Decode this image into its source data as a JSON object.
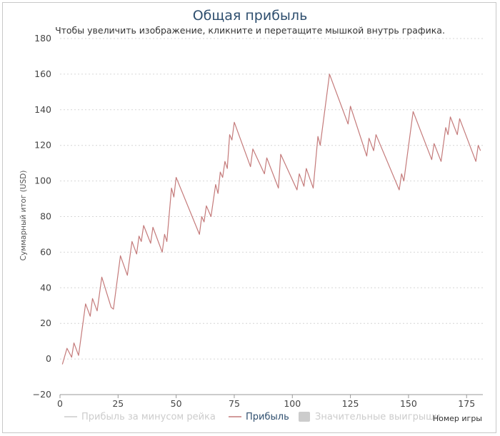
{
  "chart_data": {
    "type": "line",
    "title": "Общая прибыль",
    "subtitle": "Чтобы увеличить изображение, кликните и перетащите мышкой внутрь графика.",
    "xlabel": "Номер игры",
    "ylabel": "Суммарный итог (USD)",
    "xlim": [
      0,
      182
    ],
    "ylim": [
      -20,
      180
    ],
    "x_ticks": [
      "0",
      "25",
      "50",
      "75",
      "100",
      "125",
      "150",
      "175"
    ],
    "x_tick_values": [
      0,
      25,
      50,
      75,
      100,
      125,
      150,
      175
    ],
    "y_ticks": [
      "180",
      "160",
      "140",
      "120",
      "100",
      "80",
      "60",
      "40",
      "20",
      "0",
      "−20"
    ],
    "y_tick_values": [
      180,
      160,
      140,
      120,
      100,
      80,
      60,
      40,
      20,
      0,
      -20
    ],
    "grid": true,
    "legend_position": "bottom",
    "legend": [
      {
        "name": "Прибыль за минусом рейка",
        "symbol": "line",
        "color": "#cccccc",
        "text_color": "#cccccc"
      },
      {
        "name": "Прибыль",
        "symbol": "line",
        "color": "#c47a7a",
        "text_color": "#2f4f6f"
      },
      {
        "name": "Значительные выигрыши",
        "symbol": "box",
        "color": "#cccccc",
        "text_color": "#cccccc"
      }
    ],
    "series": [
      {
        "name": "Прибыль",
        "color": "#c47a7a",
        "points": [
          [
            1,
            -3
          ],
          [
            3,
            6
          ],
          [
            5,
            1
          ],
          [
            6,
            9
          ],
          [
            8,
            2
          ],
          [
            11,
            31
          ],
          [
            13,
            24
          ],
          [
            14,
            34
          ],
          [
            16,
            27
          ],
          [
            18,
            46
          ],
          [
            22,
            29
          ],
          [
            23,
            28
          ],
          [
            26,
            58
          ],
          [
            29,
            47
          ],
          [
            31,
            66
          ],
          [
            33,
            59
          ],
          [
            34,
            69
          ],
          [
            35,
            66
          ],
          [
            36,
            75
          ],
          [
            39,
            65
          ],
          [
            40,
            74
          ],
          [
            44,
            60
          ],
          [
            45,
            70
          ],
          [
            46,
            66
          ],
          [
            48,
            96
          ],
          [
            49,
            91
          ],
          [
            50,
            102
          ],
          [
            60,
            70
          ],
          [
            61,
            80
          ],
          [
            62,
            77
          ],
          [
            63,
            86
          ],
          [
            65,
            80
          ],
          [
            67,
            98
          ],
          [
            68,
            93
          ],
          [
            69,
            105
          ],
          [
            70,
            102
          ],
          [
            71,
            111
          ],
          [
            72,
            107
          ],
          [
            73,
            126
          ],
          [
            74,
            123
          ],
          [
            75,
            133
          ],
          [
            82,
            108
          ],
          [
            83,
            118
          ],
          [
            88,
            104
          ],
          [
            89,
            113
          ],
          [
            94,
            96
          ],
          [
            95,
            115
          ],
          [
            102,
            95
          ],
          [
            103,
            104
          ],
          [
            105,
            97
          ],
          [
            106,
            107
          ],
          [
            109,
            96
          ],
          [
            111,
            125
          ],
          [
            112,
            120
          ],
          [
            116,
            160
          ],
          [
            124,
            132
          ],
          [
            125,
            142
          ],
          [
            132,
            114
          ],
          [
            133,
            124
          ],
          [
            135,
            117
          ],
          [
            136,
            126
          ],
          [
            146,
            95
          ],
          [
            147,
            104
          ],
          [
            148,
            100
          ],
          [
            152,
            139
          ],
          [
            160,
            112
          ],
          [
            161,
            121
          ],
          [
            164,
            111
          ],
          [
            166,
            130
          ],
          [
            167,
            126
          ],
          [
            168,
            136
          ],
          [
            171,
            126
          ],
          [
            172,
            135
          ],
          [
            179,
            111
          ],
          [
            180,
            120
          ],
          [
            181,
            117
          ]
        ]
      }
    ]
  }
}
